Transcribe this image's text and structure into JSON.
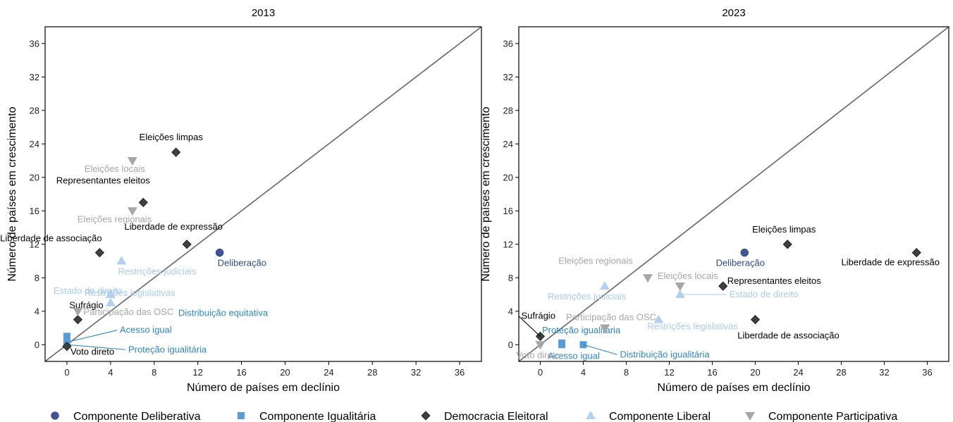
{
  "ylabel": "Número de países em crescimento",
  "xlabel": "Número de países em declínio",
  "colors": {
    "deliberativa": "#3f5597",
    "igualitaria": "#5b9bd5",
    "eleitoral": "#404040",
    "liberal": "#b3d0ee",
    "participativa": "#a6a6a6"
  },
  "legend": [
    {
      "key": "deliberativa",
      "label": "Componente Deliberativa",
      "shape": "circle"
    },
    {
      "key": "igualitaria",
      "label": "Componente Igualitária",
      "shape": "square"
    },
    {
      "key": "eleitoral",
      "label": "Democracia Eleitoral",
      "shape": "diamond"
    },
    {
      "key": "liberal",
      "label": "Componente Liberal",
      "shape": "triangle-up"
    },
    {
      "key": "participativa",
      "label": "Componente Participativa",
      "shape": "triangle-down"
    }
  ],
  "chart_data": [
    {
      "type": "scatter",
      "title": "2013",
      "xlabel": "Número de países em declínio",
      "ylabel": "Número de países em crescimento",
      "xlim": [
        -2,
        38
      ],
      "ylim": [
        -2,
        38
      ],
      "xticks": [
        0,
        4,
        8,
        12,
        16,
        20,
        24,
        28,
        32,
        36
      ],
      "yticks": [
        0,
        4,
        8,
        12,
        16,
        20,
        24,
        28,
        32,
        36
      ],
      "diagonal": true,
      "points": [
        {
          "x": 14,
          "y": 11,
          "series": "deliberativa",
          "label": "Deliberação"
        },
        {
          "x": 0,
          "y": 1,
          "series": "igualitaria",
          "label": "Distribuição equitativa"
        },
        {
          "x": 0,
          "y": 0.3,
          "series": "igualitaria",
          "label": "Acesso igual"
        },
        {
          "x": 0,
          "y": 0,
          "series": "igualitaria",
          "label": "Proteção igualitária"
        },
        {
          "x": 10,
          "y": 23,
          "series": "eleitoral",
          "label": "Eleições limpas"
        },
        {
          "x": 7,
          "y": 17,
          "series": "eleitoral",
          "label": "Representantes eleitos"
        },
        {
          "x": 11,
          "y": 12,
          "series": "eleitoral",
          "label": "Liberdade de expressão"
        },
        {
          "x": 3,
          "y": 11,
          "series": "eleitoral",
          "label": "Liberdade de associação"
        },
        {
          "x": 1,
          "y": 3,
          "series": "eleitoral",
          "label": "Sufrágio"
        },
        {
          "x": 0,
          "y": -0.2,
          "series": "eleitoral",
          "label": "Voto direto"
        },
        {
          "x": 5,
          "y": 10,
          "series": "liberal",
          "label": "Restrições judiciais"
        },
        {
          "x": 4,
          "y": 6,
          "series": "liberal",
          "label": "Restrições legislativas"
        },
        {
          "x": 4,
          "y": 5,
          "series": "liberal",
          "label": "Estado de direito"
        },
        {
          "x": 6,
          "y": 22,
          "series": "participativa",
          "label": "Eleições locais"
        },
        {
          "x": 6,
          "y": 16,
          "series": "participativa",
          "label": "Eleições regionais"
        },
        {
          "x": 1,
          "y": 4,
          "series": "participativa",
          "label": "Participação das OSC"
        }
      ]
    },
    {
      "type": "scatter",
      "title": "2023",
      "xlabel": "Número de países em declínio",
      "ylabel": "Número de países em crescimento",
      "xlim": [
        -2,
        38
      ],
      "ylim": [
        -2,
        38
      ],
      "xticks": [
        0,
        4,
        8,
        12,
        16,
        20,
        24,
        28,
        32,
        36
      ],
      "yticks": [
        0,
        4,
        8,
        12,
        16,
        20,
        24,
        28,
        32,
        36
      ],
      "diagonal": true,
      "points": [
        {
          "x": 19,
          "y": 11,
          "series": "deliberativa",
          "label": "Deliberação"
        },
        {
          "x": 2,
          "y": 0,
          "series": "igualitaria",
          "label": "Acesso igual"
        },
        {
          "x": 4,
          "y": 0,
          "series": "igualitaria",
          "label": "Distribuição igualitária"
        },
        {
          "x": 2,
          "y": 0.2,
          "series": "igualitaria",
          "label": "Proteção igualitária"
        },
        {
          "x": 23,
          "y": 12,
          "series": "eleitoral",
          "label": "Eleições limpas"
        },
        {
          "x": 35,
          "y": 11,
          "series": "eleitoral",
          "label": "Liberdade de expressão"
        },
        {
          "x": 17,
          "y": 7,
          "series": "eleitoral",
          "label": "Representantes eleitos"
        },
        {
          "x": 20,
          "y": 3,
          "series": "eleitoral",
          "label": "Liberdade de associação"
        },
        {
          "x": 0,
          "y": 1,
          "series": "eleitoral",
          "label": "Sufrágio"
        },
        {
          "x": 6,
          "y": 7,
          "series": "liberal",
          "label": "Restrições judiciais"
        },
        {
          "x": 13,
          "y": 6,
          "series": "liberal",
          "label": "Estado de direito"
        },
        {
          "x": 11,
          "y": 3,
          "series": "liberal",
          "label": "Restrições legislativas"
        },
        {
          "x": 10,
          "y": 8,
          "series": "participativa",
          "label": "Eleições regionais"
        },
        {
          "x": 13,
          "y": 7,
          "series": "participativa",
          "label": "Eleições locais"
        },
        {
          "x": 6,
          "y": 2,
          "series": "participativa",
          "label": "Participação das OSC"
        },
        {
          "x": 0,
          "y": 0,
          "series": "participativa",
          "label": "Voto direto"
        }
      ]
    }
  ]
}
